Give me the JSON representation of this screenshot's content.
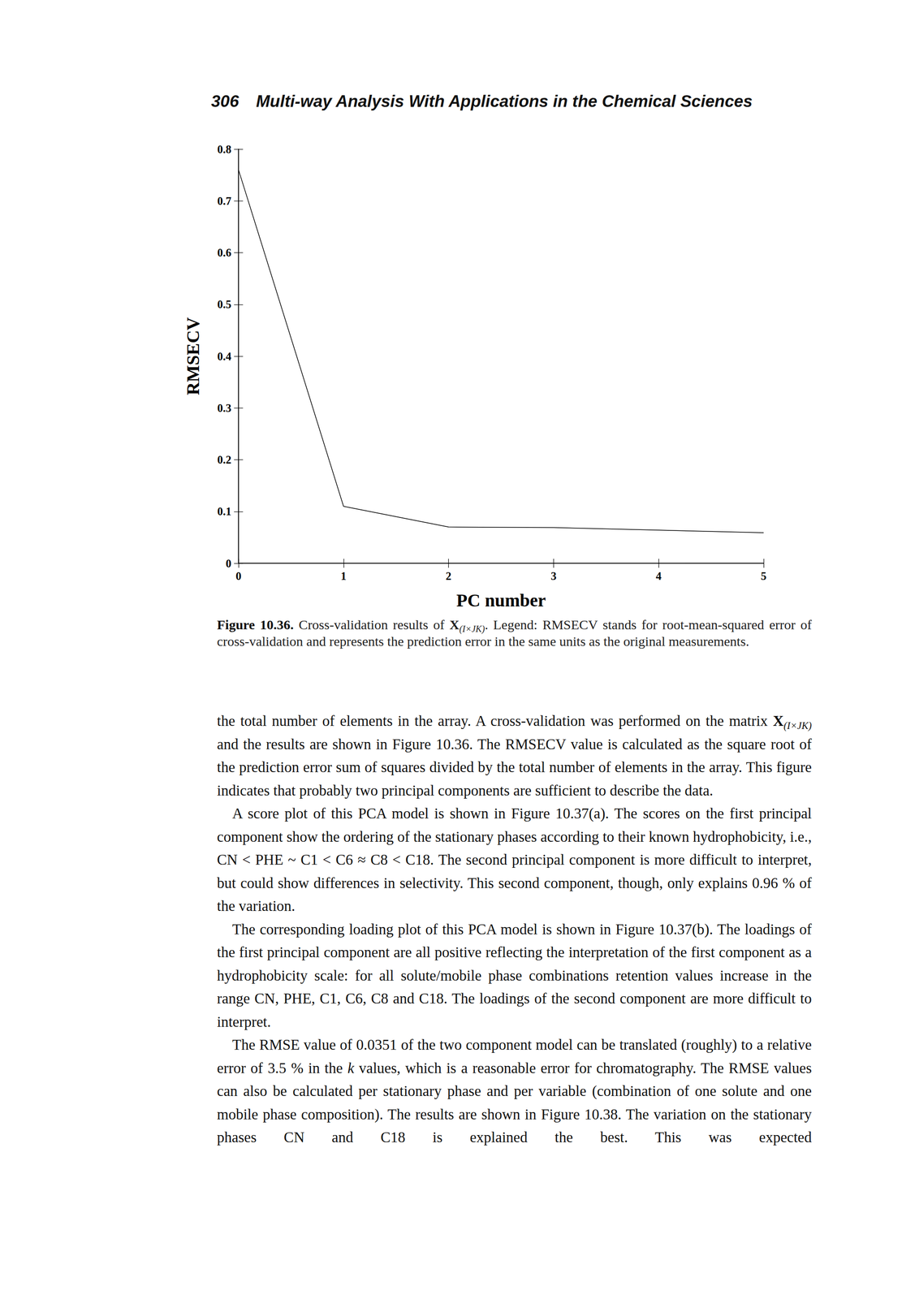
{
  "header": {
    "page": "306",
    "title": "Multi-way Analysis With Applications in the Chemical Sciences"
  },
  "chart_data": {
    "type": "line",
    "x": [
      0,
      1,
      2,
      3,
      4,
      5
    ],
    "values": [
      0.76,
      0.11,
      0.07,
      0.069,
      0.064,
      0.059
    ],
    "color": "#000000",
    "xlabel": "PC number",
    "ylabel": "RMSECV",
    "xlim": [
      0,
      5
    ],
    "ylim": [
      0,
      0.8
    ],
    "xticks": [
      0,
      1,
      2,
      3,
      4,
      5
    ],
    "yticks": [
      0,
      0.1,
      0.2,
      0.3,
      0.4,
      0.5,
      0.6,
      0.7,
      0.8
    ],
    "grid": false
  },
  "caption": {
    "label": "Figure 10.36.",
    "runs": [
      " Cross-validation results of ",
      {
        "math": "X",
        "sub": "(I×JK)"
      },
      ". Legend: RMSECV stands for root-mean-squared error of cross-validation and represents the prediction error in the same units as the original measurements."
    ]
  },
  "body": [
    [
      "the total number of elements in the array. A cross-validation was performed on the matrix ",
      {
        "math": "X",
        "sub": "(I×JK)"
      },
      " and the results are shown in Figure 10.36. The RMSECV value is calculated as the square root of the prediction error sum of squares divided by the total number of elements in the array. This figure indicates that probably two principal components are sufficient to describe the data."
    ],
    [
      "A score plot of this PCA model is shown in Figure 10.37(a). The scores on the first principal component show the ordering of the stationary phases according to their known hydrophobicity, i.e., CN < PHE ~ C1 < C6 ≈ C8 < C18. The second principal component is more difficult to interpret, but could show differences in selectivity. This second component, though, only explains 0.96 % of the variation."
    ],
    [
      "The corresponding loading plot of this PCA model is shown in Figure 10.37(b). The loadings of the first principal component are all positive reflecting the interpretation of the first component as a hydrophobicity scale: for all solute/mobile phase combinations retention values increase in the range CN, PHE, C1, C6, C8 and C18. The loadings of the second component are more difficult to interpret."
    ],
    [
      "The RMSE value of 0.0351 of the two component model can be translated (roughly) to a relative error of 3.5 % in the ",
      {
        "italic": "k"
      },
      " values, which is a reasonable error for chromatography. The RMSE values can also be calculated per stationary phase and per variable (combination of one solute and one mobile phase composition). The results are shown in Figure 10.38. The variation on the stationary phases CN and C18 is explained the best. This was expected"
    ]
  ]
}
